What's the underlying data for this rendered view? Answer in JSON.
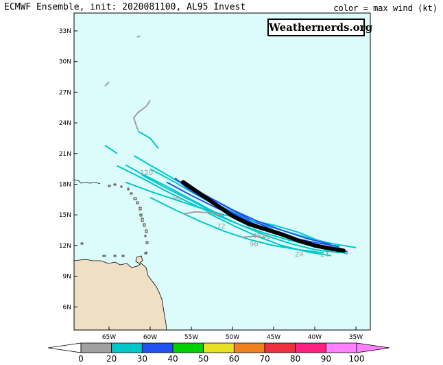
{
  "title_left": "ECMWF Ensemble, init: 2020081100, AL95 Invest",
  "title_right": "color = max wind (kt)",
  "watermark": "Weathernerds.org",
  "colors": {
    "ocean": "#dcfcfc",
    "land": "#efdfc4",
    "track_mean": "#000000",
    "wind_0_20": "#a0a0a0",
    "wind_20_30": "#00c8c8",
    "wind_30_40": "#2050f0",
    "wind_40_50": "#00d000",
    "wind_50_60": "#e8e020",
    "wind_60_70": "#f08020",
    "wind_70_80": "#f03040",
    "wind_80_90": "#ff2080",
    "wind_90_100": "#ff80ff"
  },
  "lat_ticks": [
    "33N",
    "30N",
    "27N",
    "24N",
    "21N",
    "18N",
    "15N",
    "12N",
    "9N",
    "6N"
  ],
  "lon_ticks": [
    "65W",
    "60W",
    "55W",
    "50W",
    "45W",
    "40W",
    "35W"
  ],
  "colorbar": {
    "labels": [
      "0",
      "20",
      "30",
      "40",
      "50",
      "60",
      "70",
      "80",
      "90",
      "100"
    ],
    "bins": [
      {
        "range": "0-20",
        "color": "#a0a0a0"
      },
      {
        "range": "20-30",
        "color": "#00c8c8"
      },
      {
        "range": "30-40",
        "color": "#2050f0"
      },
      {
        "range": "40-50",
        "color": "#00d000"
      },
      {
        "range": "50-60",
        "color": "#e8e020"
      },
      {
        "range": "60-70",
        "color": "#f08020"
      },
      {
        "range": "70-80",
        "color": "#f03040"
      },
      {
        "range": "80-90",
        "color": "#ff2080"
      },
      {
        "range": "90-100",
        "color": "#ff80ff"
      }
    ]
  },
  "forecast_hour_labels": [
    "120",
    "96",
    "72",
    "48",
    "48",
    "24",
    "24",
    "96"
  ],
  "mean_track": {
    "lons": [
      -36.5,
      -38,
      -40,
      -42,
      -44,
      -46,
      -48,
      -50,
      -52,
      -54,
      -56
    ],
    "lats": [
      11.5,
      11.7,
      12.0,
      12.5,
      13.1,
      13.6,
      14.1,
      14.9,
      16.0,
      17.1,
      18.2
    ]
  },
  "members": [
    {
      "color": "wind_20_30",
      "lons": [
        -35,
        -38,
        -41,
        -44,
        -47,
        -50,
        -53,
        -56,
        -59,
        -62
      ],
      "lats": [
        11.8,
        12.2,
        12.8,
        13.5,
        14.2,
        15.3,
        16.5,
        18.0,
        19.4,
        20.8
      ]
    },
    {
      "color": "wind_30_40",
      "lons": [
        -36,
        -39,
        -42,
        -45,
        -48,
        -51,
        -54,
        -57
      ],
      "lats": [
        11.4,
        11.9,
        12.6,
        13.5,
        14.6,
        15.9,
        17.2,
        18.5
      ]
    },
    {
      "color": "wind_20_30",
      "lons": [
        -36.5,
        -39,
        -42,
        -45,
        -48,
        -51,
        -54,
        -57,
        -60,
        -63
      ],
      "lats": [
        11.6,
        12.3,
        13.3,
        14.0,
        14.5,
        15.0,
        15.7,
        16.5,
        17.3,
        18.2
      ]
    },
    {
      "color": "wind_30_40",
      "lons": [
        -37,
        -40,
        -43,
        -46,
        -49,
        -52,
        -55,
        -58
      ],
      "lats": [
        11.9,
        12.3,
        12.8,
        13.6,
        14.6,
        15.7,
        16.9,
        18.2
      ]
    },
    {
      "color": "wind_20_30",
      "lons": [
        -37,
        -40,
        -43,
        -46,
        -49,
        -52,
        -55,
        -58,
        -61
      ],
      "lats": [
        11.3,
        11.6,
        12.2,
        13.0,
        14.0,
        15.1,
        16.4,
        17.6,
        18.9
      ]
    },
    {
      "color": "wind_30_40",
      "lons": [
        -38,
        -41,
        -44,
        -47,
        -50,
        -53,
        -56
      ],
      "lats": [
        12.1,
        12.7,
        13.5,
        14.4,
        15.5,
        16.8,
        18.1
      ]
    },
    {
      "color": "wind_20_30",
      "lons": [
        -36,
        -39,
        -42,
        -45,
        -48,
        -51,
        -54,
        -57,
        -60
      ],
      "lats": [
        11.2,
        11.7,
        12.4,
        13.2,
        14.2,
        15.5,
        16.8,
        18.2,
        19.5
      ]
    },
    {
      "color": "wind_20_30",
      "lons": [
        -37,
        -40,
        -43,
        -46,
        -49,
        -52,
        -55,
        -58,
        -61,
        -64
      ],
      "lats": [
        11.5,
        11.9,
        12.5,
        13.2,
        14.0,
        15.0,
        16.1,
        17.3,
        18.6,
        19.8
      ]
    },
    {
      "color": "wind_30_40",
      "lons": [
        -40,
        -43,
        -46,
        -49,
        -52,
        -55,
        -57
      ],
      "lats": [
        12.0,
        12.7,
        13.6,
        14.8,
        16.0,
        17.3,
        18.6
      ]
    },
    {
      "color": "wind_20_30",
      "lons": [
        -38,
        -41,
        -44,
        -47,
        -50,
        -53
      ],
      "lats": [
        11.0,
        11.4,
        12.0,
        12.9,
        14.0,
        15.2
      ]
    },
    {
      "color": "wind_20_30",
      "lons": [
        -52,
        -55,
        -58,
        -61,
        -63
      ],
      "lats": [
        15.2,
        16.5,
        17.8,
        19.0,
        19.9
      ]
    },
    {
      "color": "wind_20_30",
      "lons": [
        -39,
        -42,
        -45,
        -48,
        -51,
        -54,
        -57,
        -60
      ],
      "lats": [
        11.3,
        11.6,
        12.0,
        12.6,
        13.4,
        14.4,
        15.5,
        16.7
      ]
    },
    {
      "color": "wind_0_20",
      "lons": [
        -51,
        -52.5,
        -54.5,
        -56
      ],
      "lats": [
        14.9,
        15.2,
        15.3,
        15.1
      ]
    },
    {
      "color": "wind_0_20",
      "lons": [
        -46,
        -47.5,
        -49
      ],
      "lats": [
        12.8,
        12.9,
        12.8
      ]
    },
    {
      "color": "wind_20_30",
      "lons": [
        -64,
        -65.5
      ],
      "lats": [
        21.0,
        21.8
      ]
    },
    {
      "color": "wind_20_30",
      "lons": [
        -59,
        -60,
        -61.5
      ],
      "lats": [
        21.5,
        22.5,
        23.2
      ]
    },
    {
      "color": "wind_0_20",
      "lons": [
        -61.5,
        -62,
        -61.5,
        -60.5,
        -60
      ],
      "lats": [
        23.3,
        24.5,
        25.0,
        25.6,
        26.2
      ]
    },
    {
      "color": "wind_0_20",
      "lons": [
        -65.5,
        -65
      ],
      "lats": [
        27.6,
        28.0
      ]
    },
    {
      "color": "wind_0_20",
      "lons": [
        -61.6,
        -61.2
      ],
      "lats": [
        32.4,
        32.5
      ]
    }
  ]
}
